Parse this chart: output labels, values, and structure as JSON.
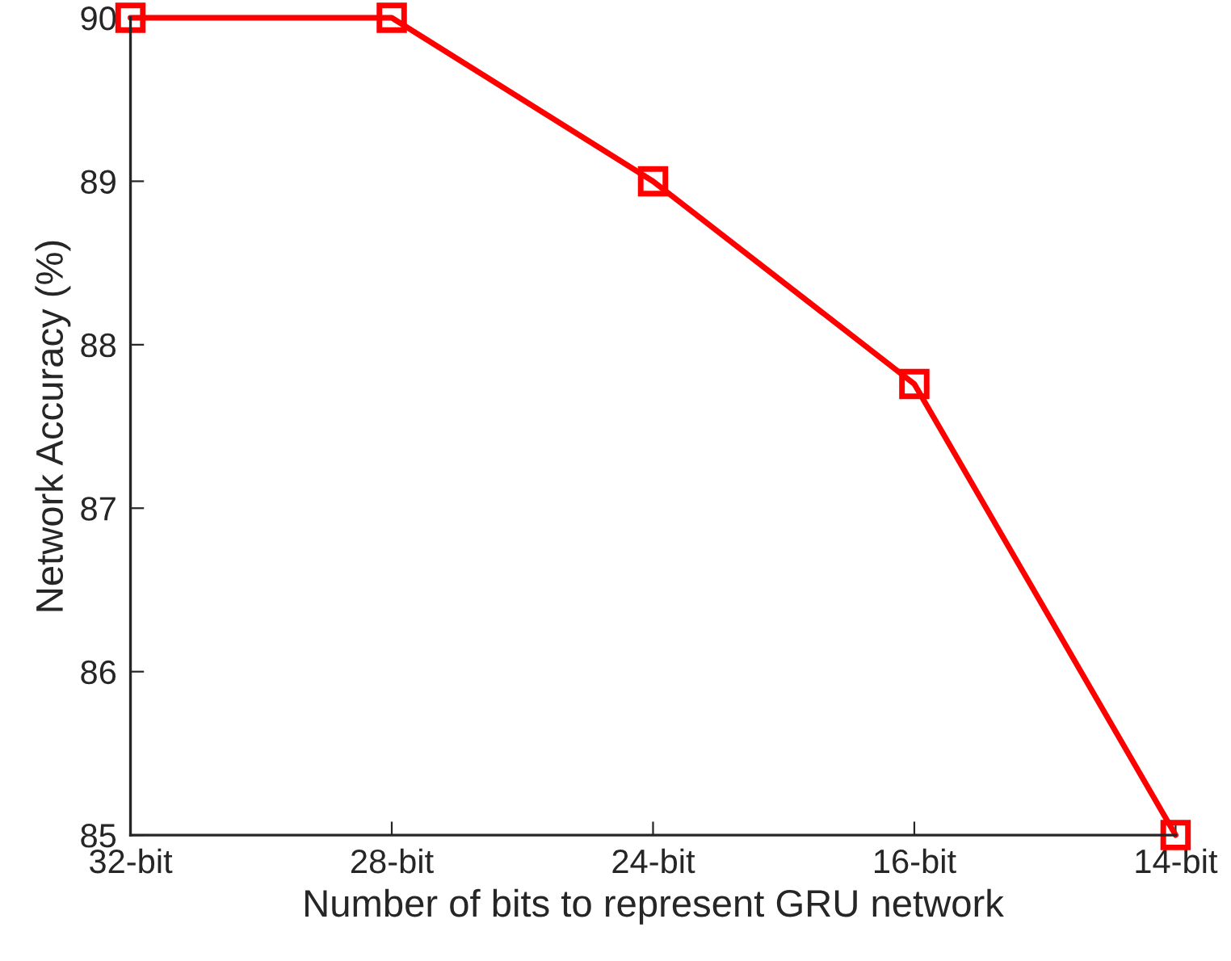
{
  "chart_data": {
    "type": "line",
    "xlabel": "Number of bits to represent GRU network",
    "ylabel": "Network Accuracy (%)",
    "categories": [
      "32-bit",
      "28-bit",
      "24-bit",
      "16-bit",
      "14-bit"
    ],
    "series": [
      {
        "color": "#ff0000",
        "values": [
          90,
          90,
          89,
          87.76,
          85
        ]
      }
    ],
    "ylim": [
      85,
      90
    ],
    "yticks": [
      85,
      86,
      87,
      88,
      89,
      90
    ],
    "marker": "square",
    "line_style": "solid",
    "grid": false,
    "legend": false
  }
}
